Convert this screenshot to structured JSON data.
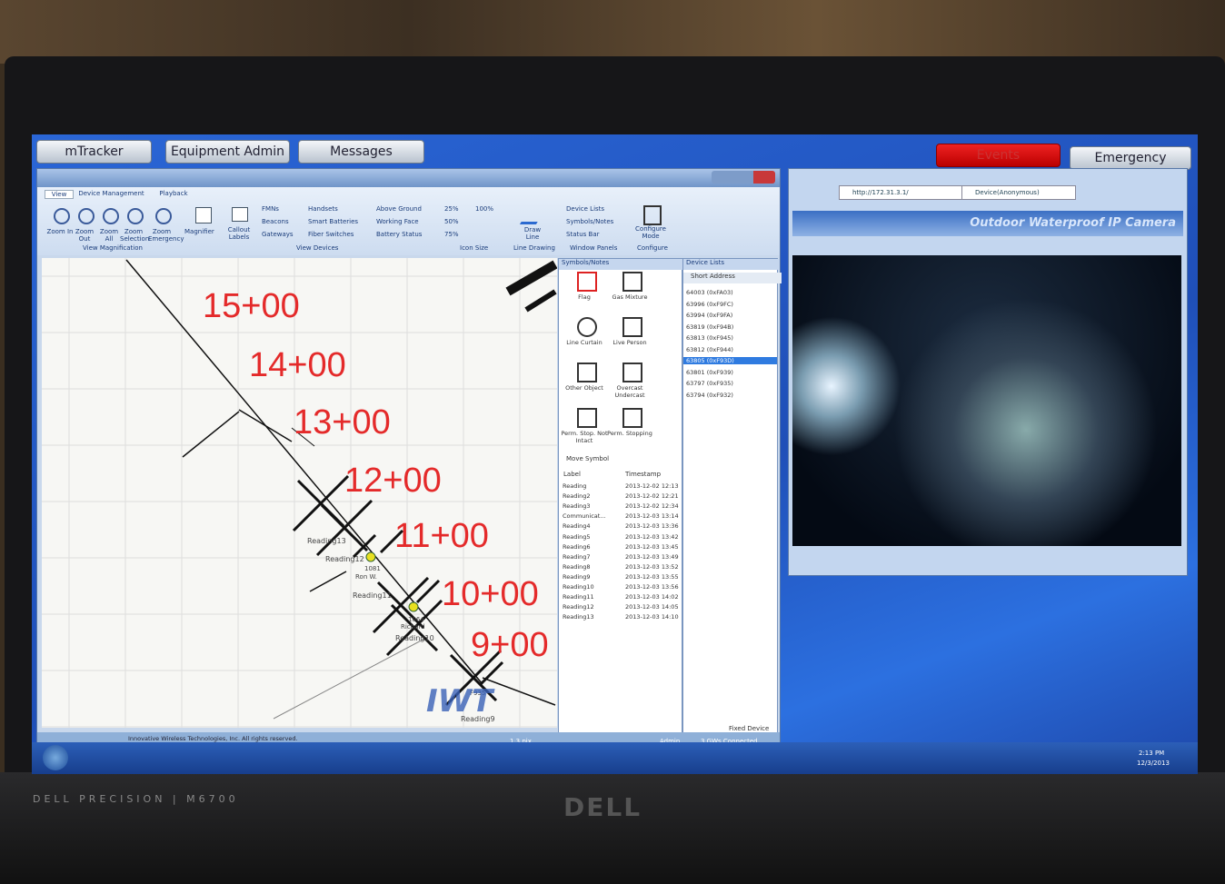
{
  "tabs": [
    "mTracker",
    "Equipment Admin",
    "Messages"
  ],
  "alert_tabs": [
    "Events",
    "Emergency"
  ],
  "ribbon": {
    "tabs": [
      "View",
      "Device Management",
      "Playback"
    ],
    "zoom_buttons": [
      "Zoom In",
      "Zoom Out",
      "Zoom All",
      "Zoom Selection",
      "Zoom Emergency"
    ],
    "magnifier": "Magnifier",
    "callout": "Callout Labels",
    "device_checks": [
      "FMNs",
      "Beacons",
      "Gateways",
      "Handsets",
      "Smart Batteries",
      "Fiber Switches",
      "Above Ground",
      "Working Face",
      "Battery Status"
    ],
    "icon_sizes": [
      "25%",
      "100%",
      "50%",
      "75%"
    ],
    "draw_line": "Draw Line",
    "panels": [
      "Device Lists",
      "Symbols/Notes",
      "Status Bar"
    ],
    "configure": "Configure Mode",
    "groups": [
      "View Magnification",
      "View Devices",
      "Icon Size",
      "Line Drawing",
      "Window Panels",
      "Configure"
    ]
  },
  "map": {
    "stations": [
      "15+00",
      "14+00",
      "13+00",
      "12+00",
      "11+00",
      "10+00",
      "9+00"
    ],
    "readings": [
      "Reading13",
      "Reading12",
      "Reading11",
      "Reading10",
      "Reading9"
    ],
    "devices": [
      "1081",
      "Ron W.",
      "1064",
      "Richard",
      "F935"
    ],
    "logo": "IWT"
  },
  "symbols": {
    "title": "Symbols/Notes",
    "items": [
      "Flag",
      "Gas Mixture",
      "Line Curtain",
      "Live Person",
      "Other Object",
      "Overcast Undercast",
      "Perm. Stop. Not Intact",
      "Perm. Stopping"
    ],
    "move_symbol": "Move Symbol",
    "columns": [
      "Label",
      "Timestamp"
    ],
    "rows": [
      [
        "Reading",
        "2013-12-02 12:13"
      ],
      [
        "Reading2",
        "2013-12-02 12:21"
      ],
      [
        "Reading3",
        "2013-12-02 12:34"
      ],
      [
        "Communicat...",
        "2013-12-03 13:14"
      ],
      [
        "Reading4",
        "2013-12-03 13:36"
      ],
      [
        "Reading5",
        "2013-12-03 13:42"
      ],
      [
        "Reading6",
        "2013-12-03 13:45"
      ],
      [
        "Reading7",
        "2013-12-03 13:49"
      ],
      [
        "Reading8",
        "2013-12-03 13:52"
      ],
      [
        "Reading9",
        "2013-12-03 13:55"
      ],
      [
        "Reading10",
        "2013-12-03 13:56"
      ],
      [
        "Reading11",
        "2013-12-03 14:02"
      ],
      [
        "Reading12",
        "2013-12-03 14:05"
      ],
      [
        "Reading13",
        "2013-12-03 14:10"
      ]
    ]
  },
  "device_list": {
    "title": "Device Lists",
    "column": "Short Address",
    "rows": [
      "64003 (0xFA03)",
      "63996 (0xF9FC)",
      "63994 (0xF9FA)",
      "63819 (0xF94B)",
      "63813 (0xF945)",
      "63812 (0xF944)",
      "63805 (0xF93D)",
      "63801 (0xF939)",
      "63797 (0xF935)",
      "63794 (0xF932)"
    ],
    "footer": "Fixed Device"
  },
  "status": {
    "copyright": "Innovative Wireless Technologies, Inc. All rights reserved.",
    "zoom": "1.3 pix",
    "user": "Admin",
    "gateways": "3 GWs Connected"
  },
  "browser": {
    "url": "http://172.31.3.1/",
    "tab": "Device(Anonymous)",
    "banner": "Outdoor Waterproof IP Camera"
  },
  "taskbar": {
    "time": "2:13 PM",
    "date": "12/3/2013"
  },
  "laptop": {
    "model": "DELL PRECISION | M6700",
    "brand": "DELL"
  }
}
